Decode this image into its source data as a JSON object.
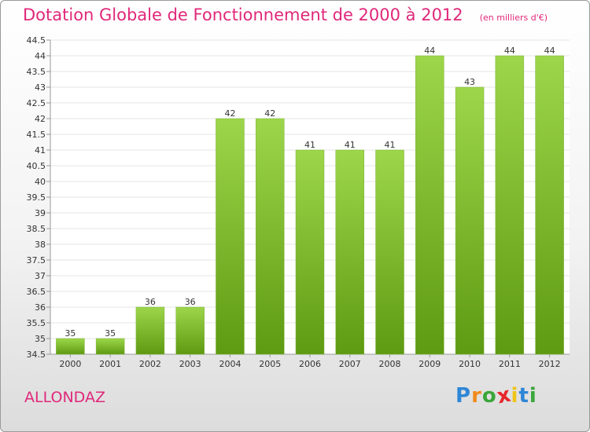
{
  "chart_data": {
    "type": "bar",
    "title": "Dotation Globale de Fonctionnement de 2000 à 2012",
    "subtitle": "(en milliers d'€)",
    "categories": [
      "2000",
      "2001",
      "2002",
      "2003",
      "2004",
      "2005",
      "2006",
      "2007",
      "2008",
      "2009",
      "2010",
      "2011",
      "2012"
    ],
    "values": [
      35,
      35,
      36,
      36,
      42,
      42,
      41,
      41,
      41,
      44,
      43,
      44,
      44
    ],
    "ylim": [
      34.5,
      44.5
    ],
    "yticks": [
      "34.5",
      "35",
      "35.5",
      "36",
      "36.5",
      "37",
      "37.5",
      "38",
      "38.5",
      "39",
      "39.5",
      "40",
      "40.5",
      "41",
      "41.5",
      "42",
      "42.5",
      "43",
      "43.5",
      "44",
      "44.5"
    ],
    "grid": true,
    "colors": {
      "bar_light": "#9dd64a",
      "bar_dark": "#5e9a12",
      "grid": "#e6e6e6"
    }
  },
  "commune": "ALLONDAZ",
  "logo": {
    "letters": [
      "P",
      "r",
      "o",
      "x",
      "i",
      "t",
      "i"
    ],
    "colors": [
      "#2e86d6",
      "#f08a1c",
      "#3aa63a",
      "#e8262a",
      "#f0c419",
      "#2e86d6",
      "#3aa63a"
    ]
  }
}
